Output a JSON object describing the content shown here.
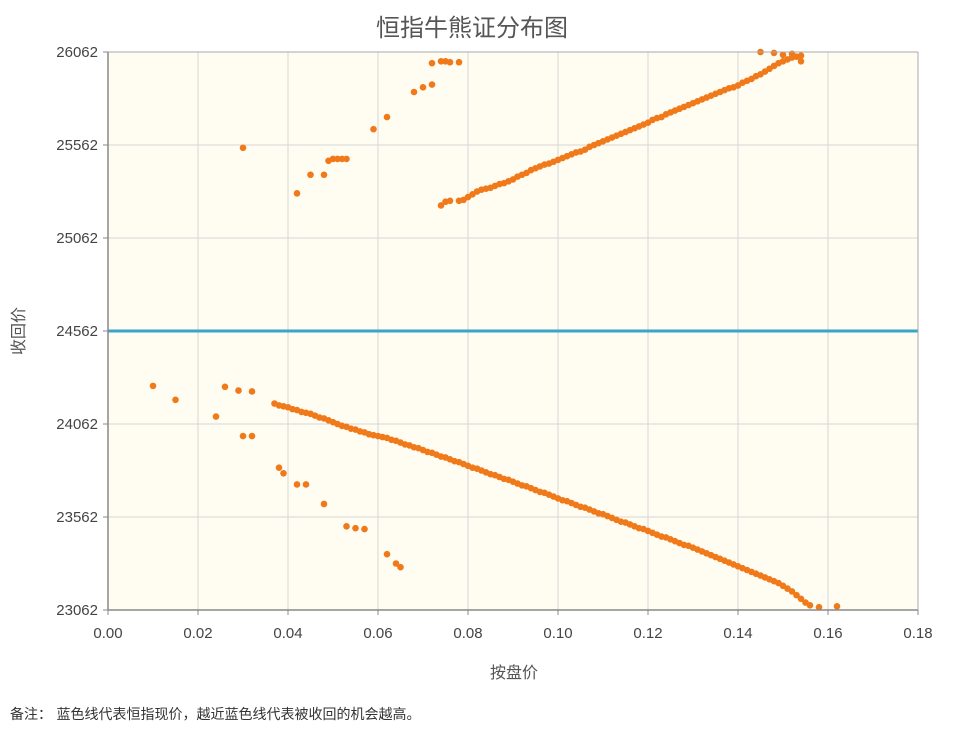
{
  "chart_data": {
    "type": "scatter",
    "title": "恒指牛熊证分布图",
    "xlabel": "按盘价",
    "ylabel": "收回价",
    "xlim": [
      0,
      0.18
    ],
    "ylim": [
      23062,
      26062
    ],
    "x_ticks": [
      0.0,
      0.02,
      0.04,
      0.06,
      0.08,
      0.1,
      0.12,
      0.14,
      0.16,
      0.18
    ],
    "x_tick_labels": [
      "0.00",
      "0.02",
      "0.04",
      "0.06",
      "0.08",
      "0.10",
      "0.12",
      "0.14",
      "0.16",
      "0.18"
    ],
    "y_ticks": [
      23062,
      23562,
      24062,
      24562,
      25062,
      25562,
      26062
    ],
    "y_tick_labels": [
      "23062",
      "23562",
      "24062",
      "24562",
      "25062",
      "25562",
      "26062"
    ],
    "grid": true,
    "reference_line": {
      "y": 24562,
      "color": "#3aa4c9"
    },
    "point_color": "#f07a1a",
    "plot_background": "#fffcf2",
    "series": [
      {
        "values_description_free": true,
        "points": [
          [
            0.03,
            25547
          ],
          [
            0.042,
            25302
          ],
          [
            0.045,
            25402
          ],
          [
            0.048,
            25402
          ],
          [
            0.049,
            25477
          ],
          [
            0.05,
            25487
          ],
          [
            0.051,
            25487
          ],
          [
            0.052,
            25487
          ],
          [
            0.053,
            25487
          ],
          [
            0.059,
            25647
          ],
          [
            0.062,
            25712
          ],
          [
            0.068,
            25847
          ],
          [
            0.07,
            25872
          ],
          [
            0.072,
            25887
          ],
          [
            0.072,
            26002
          ],
          [
            0.074,
            26012
          ],
          [
            0.075,
            26012
          ],
          [
            0.076,
            26007
          ],
          [
            0.078,
            26007
          ],
          [
            0.074,
            25237
          ],
          [
            0.075,
            25257
          ],
          [
            0.076,
            25262
          ],
          [
            0.078,
            25262
          ],
          [
            0.079,
            25267
          ],
          [
            0.08,
            25282
          ],
          [
            0.081,
            25297
          ],
          [
            0.082,
            25312
          ],
          [
            0.083,
            25322
          ],
          [
            0.084,
            25327
          ],
          [
            0.085,
            25332
          ],
          [
            0.086,
            25342
          ],
          [
            0.087,
            25352
          ],
          [
            0.088,
            25357
          ],
          [
            0.089,
            25367
          ],
          [
            0.09,
            25377
          ],
          [
            0.091,
            25392
          ],
          [
            0.092,
            25402
          ],
          [
            0.093,
            25412
          ],
          [
            0.094,
            25427
          ],
          [
            0.095,
            25437
          ],
          [
            0.096,
            25447
          ],
          [
            0.097,
            25457
          ],
          [
            0.098,
            25462
          ],
          [
            0.099,
            25472
          ],
          [
            0.1,
            25482
          ],
          [
            0.101,
            25492
          ],
          [
            0.102,
            25502
          ],
          [
            0.103,
            25512
          ],
          [
            0.104,
            25522
          ],
          [
            0.105,
            25527
          ],
          [
            0.106,
            25537
          ],
          [
            0.107,
            25552
          ],
          [
            0.108,
            25562
          ],
          [
            0.109,
            25572
          ],
          [
            0.11,
            25582
          ],
          [
            0.111,
            25592
          ],
          [
            0.112,
            25602
          ],
          [
            0.113,
            25612
          ],
          [
            0.114,
            25622
          ],
          [
            0.115,
            25632
          ],
          [
            0.116,
            25642
          ],
          [
            0.117,
            25652
          ],
          [
            0.118,
            25662
          ],
          [
            0.119,
            25672
          ],
          [
            0.12,
            25682
          ],
          [
            0.121,
            25697
          ],
          [
            0.122,
            25707
          ],
          [
            0.123,
            25712
          ],
          [
            0.124,
            25727
          ],
          [
            0.125,
            25737
          ],
          [
            0.126,
            25747
          ],
          [
            0.127,
            25757
          ],
          [
            0.128,
            25767
          ],
          [
            0.129,
            25777
          ],
          [
            0.13,
            25787
          ],
          [
            0.131,
            25797
          ],
          [
            0.132,
            25807
          ],
          [
            0.133,
            25817
          ],
          [
            0.134,
            25827
          ],
          [
            0.135,
            25837
          ],
          [
            0.136,
            25847
          ],
          [
            0.137,
            25857
          ],
          [
            0.138,
            25867
          ],
          [
            0.139,
            25872
          ],
          [
            0.14,
            25882
          ],
          [
            0.141,
            25897
          ],
          [
            0.142,
            25907
          ],
          [
            0.143,
            25917
          ],
          [
            0.144,
            25932
          ],
          [
            0.145,
            25942
          ],
          [
            0.146,
            25957
          ],
          [
            0.147,
            25972
          ],
          [
            0.148,
            25987
          ],
          [
            0.149,
            26002
          ],
          [
            0.15,
            26012
          ],
          [
            0.151,
            26022
          ],
          [
            0.152,
            26032
          ],
          [
            0.153,
            26037
          ],
          [
            0.154,
            26042
          ],
          [
            0.145,
            26062
          ],
          [
            0.148,
            26057
          ],
          [
            0.15,
            26047
          ],
          [
            0.152,
            26052
          ],
          [
            0.154,
            26012
          ],
          [
            0.01,
            24267
          ],
          [
            0.015,
            24192
          ],
          [
            0.024,
            24102
          ],
          [
            0.026,
            24262
          ],
          [
            0.029,
            24242
          ],
          [
            0.03,
            23997
          ],
          [
            0.032,
            24237
          ],
          [
            0.032,
            23997
          ],
          [
            0.038,
            23827
          ],
          [
            0.039,
            23797
          ],
          [
            0.042,
            23737
          ],
          [
            0.044,
            23737
          ],
          [
            0.048,
            23632
          ],
          [
            0.053,
            23512
          ],
          [
            0.055,
            23502
          ],
          [
            0.057,
            23497
          ],
          [
            0.062,
            23362
          ],
          [
            0.064,
            23312
          ],
          [
            0.065,
            23292
          ],
          [
            0.037,
            24172
          ],
          [
            0.038,
            24162
          ],
          [
            0.039,
            24157
          ],
          [
            0.04,
            24152
          ],
          [
            0.041,
            24142
          ],
          [
            0.042,
            24137
          ],
          [
            0.043,
            24127
          ],
          [
            0.044,
            24122
          ],
          [
            0.045,
            24117
          ],
          [
            0.046,
            24107
          ],
          [
            0.047,
            24097
          ],
          [
            0.048,
            24092
          ],
          [
            0.049,
            24082
          ],
          [
            0.05,
            24072
          ],
          [
            0.051,
            24062
          ],
          [
            0.052,
            24052
          ],
          [
            0.053,
            24047
          ],
          [
            0.054,
            24037
          ],
          [
            0.055,
            24032
          ],
          [
            0.056,
            24022
          ],
          [
            0.057,
            24017
          ],
          [
            0.058,
            24007
          ],
          [
            0.059,
            24002
          ],
          [
            0.06,
            23997
          ],
          [
            0.061,
            23992
          ],
          [
            0.062,
            23987
          ],
          [
            0.063,
            23977
          ],
          [
            0.064,
            23972
          ],
          [
            0.065,
            23962
          ],
          [
            0.066,
            23952
          ],
          [
            0.067,
            23947
          ],
          [
            0.068,
            23937
          ],
          [
            0.069,
            23932
          ],
          [
            0.07,
            23922
          ],
          [
            0.071,
            23912
          ],
          [
            0.072,
            23907
          ],
          [
            0.073,
            23897
          ],
          [
            0.074,
            23887
          ],
          [
            0.075,
            23882
          ],
          [
            0.076,
            23872
          ],
          [
            0.077,
            23862
          ],
          [
            0.078,
            23857
          ],
          [
            0.079,
            23847
          ],
          [
            0.08,
            23837
          ],
          [
            0.081,
            23827
          ],
          [
            0.082,
            23822
          ],
          [
            0.083,
            23812
          ],
          [
            0.084,
            23802
          ],
          [
            0.085,
            23792
          ],
          [
            0.086,
            23787
          ],
          [
            0.087,
            23777
          ],
          [
            0.088,
            23767
          ],
          [
            0.089,
            23762
          ],
          [
            0.09,
            23752
          ],
          [
            0.091,
            23742
          ],
          [
            0.092,
            23732
          ],
          [
            0.093,
            23727
          ],
          [
            0.094,
            23717
          ],
          [
            0.095,
            23707
          ],
          [
            0.096,
            23697
          ],
          [
            0.097,
            23692
          ],
          [
            0.098,
            23682
          ],
          [
            0.099,
            23672
          ],
          [
            0.1,
            23662
          ],
          [
            0.101,
            23652
          ],
          [
            0.102,
            23647
          ],
          [
            0.103,
            23637
          ],
          [
            0.104,
            23627
          ],
          [
            0.105,
            23617
          ],
          [
            0.106,
            23612
          ],
          [
            0.107,
            23602
          ],
          [
            0.108,
            23592
          ],
          [
            0.109,
            23582
          ],
          [
            0.11,
            23577
          ],
          [
            0.111,
            23567
          ],
          [
            0.112,
            23557
          ],
          [
            0.113,
            23547
          ],
          [
            0.114,
            23537
          ],
          [
            0.115,
            23532
          ],
          [
            0.116,
            23522
          ],
          [
            0.117,
            23512
          ],
          [
            0.118,
            23502
          ],
          [
            0.119,
            23497
          ],
          [
            0.12,
            23487
          ],
          [
            0.121,
            23477
          ],
          [
            0.122,
            23467
          ],
          [
            0.123,
            23457
          ],
          [
            0.124,
            23452
          ],
          [
            0.125,
            23442
          ],
          [
            0.126,
            23432
          ],
          [
            0.127,
            23422
          ],
          [
            0.128,
            23412
          ],
          [
            0.129,
            23407
          ],
          [
            0.13,
            23397
          ],
          [
            0.131,
            23387
          ],
          [
            0.132,
            23377
          ],
          [
            0.133,
            23367
          ],
          [
            0.134,
            23357
          ],
          [
            0.135,
            23347
          ],
          [
            0.136,
            23337
          ],
          [
            0.137,
            23327
          ],
          [
            0.138,
            23317
          ],
          [
            0.139,
            23307
          ],
          [
            0.14,
            23297
          ],
          [
            0.141,
            23287
          ],
          [
            0.142,
            23277
          ],
          [
            0.143,
            23267
          ],
          [
            0.144,
            23257
          ],
          [
            0.145,
            23247
          ],
          [
            0.146,
            23237
          ],
          [
            0.147,
            23227
          ],
          [
            0.148,
            23217
          ],
          [
            0.149,
            23207
          ],
          [
            0.15,
            23192
          ],
          [
            0.151,
            23177
          ],
          [
            0.152,
            23162
          ],
          [
            0.153,
            23142
          ],
          [
            0.154,
            23122
          ],
          [
            0.155,
            23102
          ],
          [
            0.156,
            23087
          ],
          [
            0.158,
            23077
          ],
          [
            0.162,
            23082
          ]
        ]
      }
    ]
  },
  "footnote": "备注： 蓝色线代表恒指现价，越近蓝色线代表被收回的机会越高。"
}
